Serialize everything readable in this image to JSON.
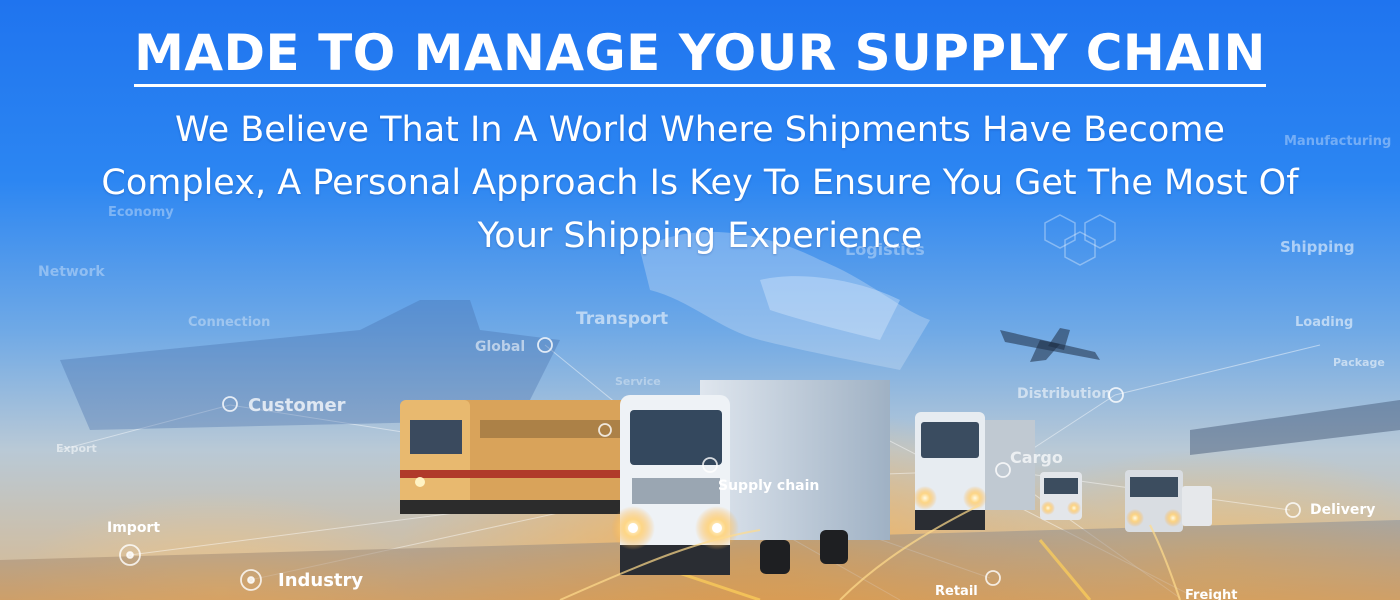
{
  "banner": {
    "title": "MADE TO MANAGE YOUR SUPPLY CHAIN",
    "subtitle": "We Believe That In A World Where Shipments Have Become Complex, A Personal Approach Is Key To Ensure You Get The Most Of Your Shipping Experience"
  },
  "network_tags": {
    "network": "Network",
    "economy": "Economy",
    "connection": "Connection",
    "global": "Global",
    "transport": "Transport",
    "service": "Service",
    "logistics": "Logistics",
    "manufacturing": "Manufacturing",
    "shipping": "Shipping",
    "loading": "Loading",
    "package": "Package",
    "distribution": "Distribution",
    "customer": "Customer",
    "export": "Export",
    "import": "Import",
    "industry": "Industry",
    "supply_chain": "Supply chain",
    "cargo": "Cargo",
    "delivery": "Delivery",
    "retail": "Retail",
    "freight": "Freight"
  }
}
